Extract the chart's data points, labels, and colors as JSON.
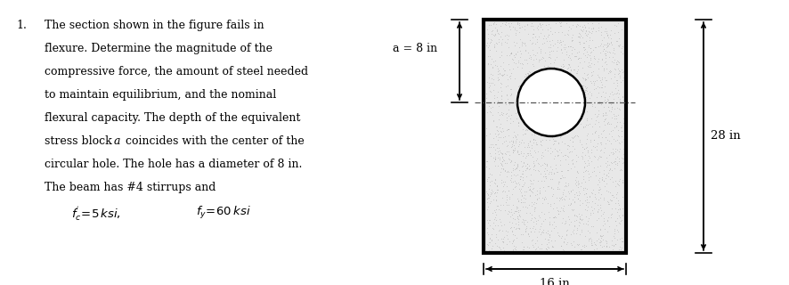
{
  "fig_width": 8.87,
  "fig_height": 3.2,
  "dpi": 100,
  "text_color": "#000000",
  "bg_color": "#ffffff",
  "problem_text_lines": [
    "The section shown in the figure fails in",
    "flexure. Determine the magnitude of the",
    "compressive force, the amount of steel needed",
    "to maintain equilibrium, and the nominal",
    "flexural capacity. The depth of the equivalent",
    "stress block a coincides with the center of the",
    "circular hole. The hole has a diameter of 8 in.",
    "The beam has #4 stirrups and"
  ],
  "italic_a_in_line5": true,
  "dim_28": "28 in",
  "dim_16": "16 in",
  "rect_fill": "#e8e8e8",
  "rect_edge": "#000000"
}
